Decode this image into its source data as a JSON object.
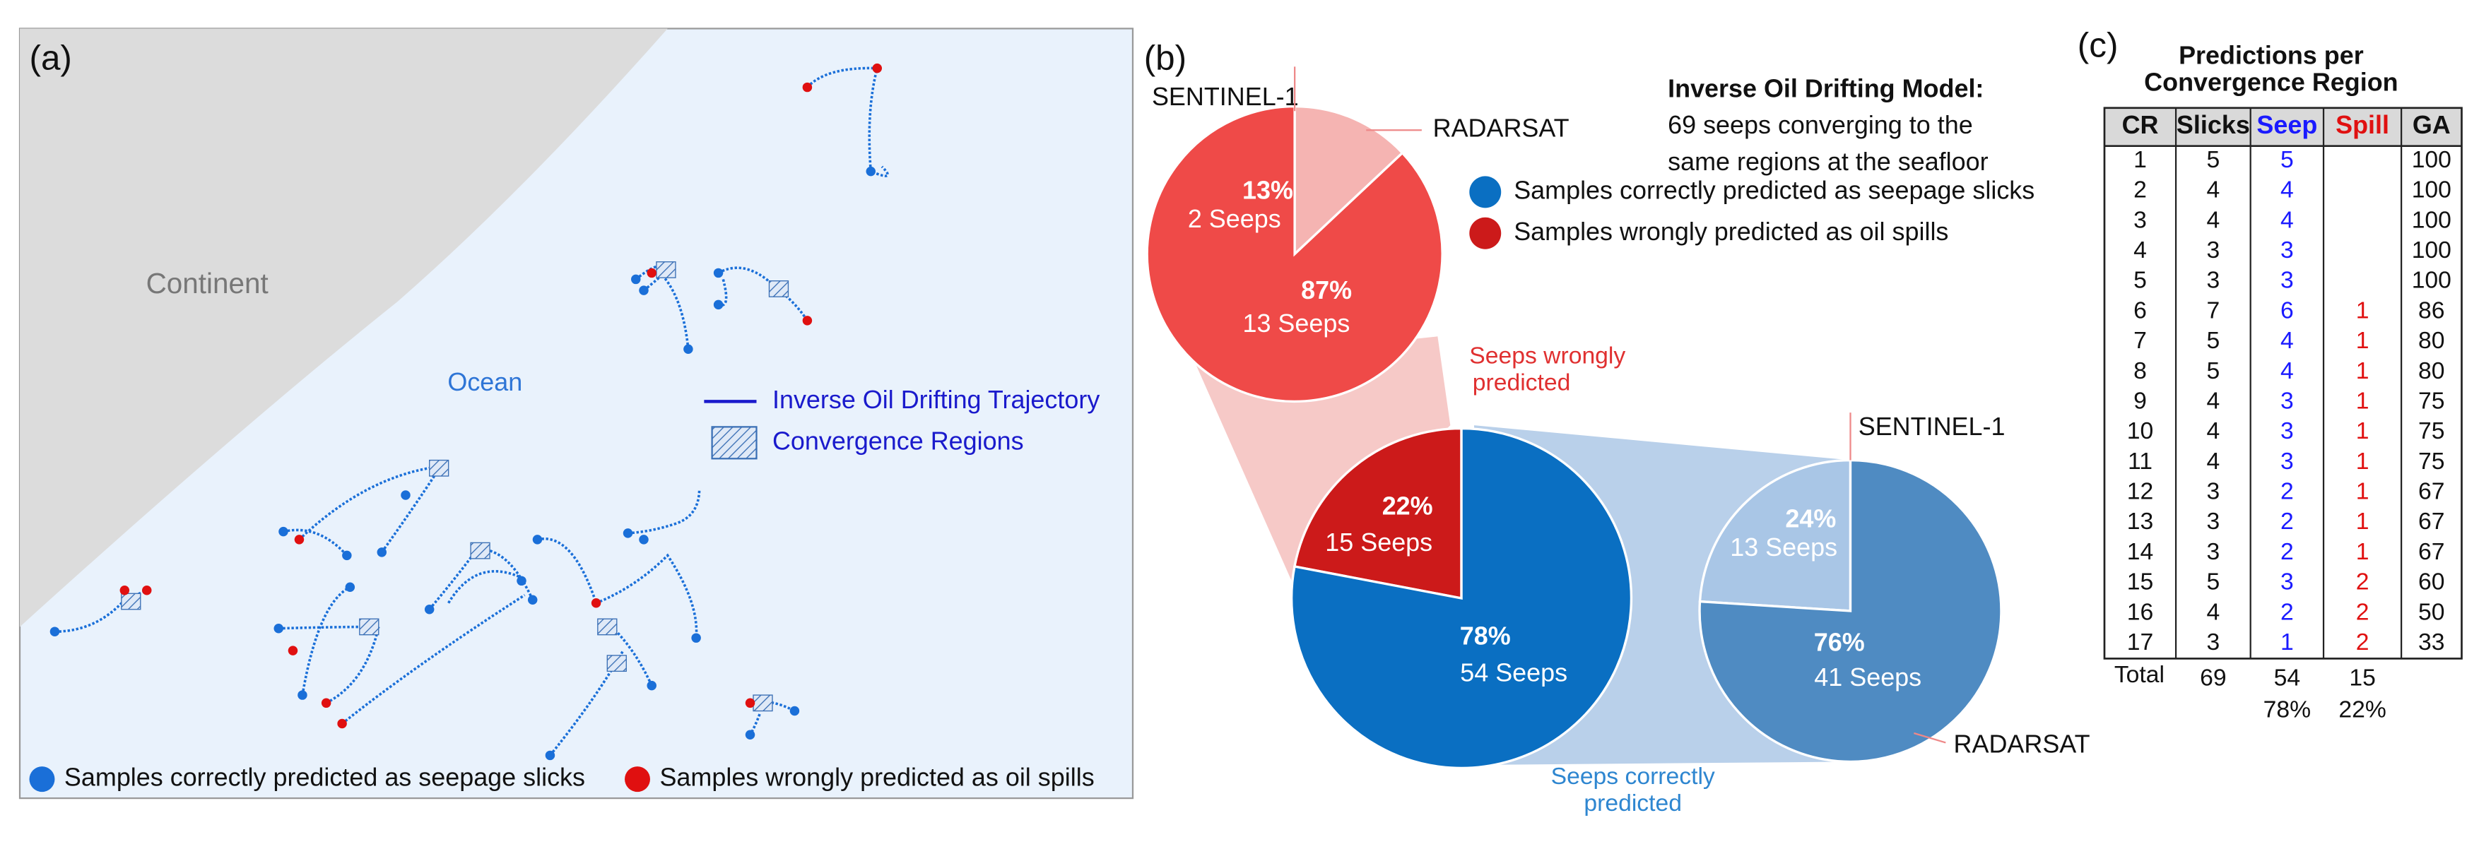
{
  "panel_a": {
    "label": "(a)",
    "continent": "Continent",
    "ocean": "Ocean",
    "legend_trajectory": "Inverse Oil Drifting Trajectory",
    "legend_regions": "Convergence Regions",
    "legend": [
      {
        "label": "Samples correctly predicted as seepage slicks",
        "color": "#1a6fd8"
      },
      {
        "label": "Samples wrongly predicted as oil spills",
        "color": "#e01010"
      }
    ]
  },
  "panel_b": {
    "label": "(b)",
    "title": "Inverse Oil Drifting Model:",
    "subtitle_lines": [
      "69 seeps converging to the",
      "same regions at the seafloor"
    ],
    "legend": [
      {
        "label": "Samples correctly predicted as seepage slicks",
        "color": "#0a6fc2"
      },
      {
        "label": "Samples wrongly predicted as oil spills",
        "color": "#cc1a1a"
      }
    ]
  },
  "chart_data": [
    {
      "type": "pie",
      "categories": [
        "Seeps wrongly predicted",
        "Seeps correctly predicted"
      ],
      "values": [
        22,
        78
      ],
      "value_labels": [
        "22%",
        "78%"
      ],
      "sublabels": [
        "15 Seeps",
        "54 Seeps"
      ],
      "colors": [
        "#cc1a1a",
        "#0a6fc2"
      ]
    },
    {
      "type": "pie",
      "categories": [
        "SENTINEL-1",
        "RADARSAT"
      ],
      "values": [
        87,
        13
      ],
      "value_labels": [
        "87%",
        "13%"
      ],
      "sublabels": [
        "13 Seeps",
        "2 Seeps"
      ],
      "colors": [
        "#ef4a48",
        "#f5b4b2"
      ]
    },
    {
      "type": "pie",
      "categories": [
        "SENTINEL-1",
        "RADARSAT"
      ],
      "values": [
        24,
        76
      ],
      "value_labels": [
        "24%",
        "76%"
      ],
      "sublabels": [
        "13 Seeps",
        "41 Seeps"
      ],
      "colors": [
        "#a9c6e6",
        "#4f8bc2"
      ]
    }
  ],
  "table": {
    "label": "(c)",
    "title_lines": [
      "Predictions per",
      "Convergence Region"
    ],
    "columns": [
      "CR",
      "Slicks",
      "Seep",
      "Spill",
      "GA"
    ],
    "column_colors": [
      "#111111",
      "#111111",
      "#1a1aff",
      "#e01010",
      "#111111"
    ],
    "rows": [
      [
        1,
        5,
        5,
        null,
        100
      ],
      [
        2,
        4,
        4,
        null,
        100
      ],
      [
        3,
        4,
        4,
        null,
        100
      ],
      [
        4,
        3,
        3,
        null,
        100
      ],
      [
        5,
        3,
        3,
        null,
        100
      ],
      [
        6,
        7,
        6,
        1,
        86
      ],
      [
        7,
        5,
        4,
        1,
        80
      ],
      [
        8,
        5,
        4,
        1,
        80
      ],
      [
        9,
        4,
        3,
        1,
        75
      ],
      [
        10,
        4,
        3,
        1,
        75
      ],
      [
        11,
        4,
        3,
        1,
        75
      ],
      [
        12,
        3,
        2,
        1,
        67
      ],
      [
        13,
        3,
        2,
        1,
        67
      ],
      [
        14,
        3,
        2,
        1,
        67
      ],
      [
        15,
        5,
        3,
        2,
        60
      ],
      [
        16,
        4,
        2,
        2,
        50
      ],
      [
        17,
        3,
        1,
        2,
        33
      ]
    ],
    "total": {
      "label": "Total",
      "values": [
        69,
        54,
        15
      ],
      "percents": [
        "78%",
        "22%"
      ]
    }
  }
}
